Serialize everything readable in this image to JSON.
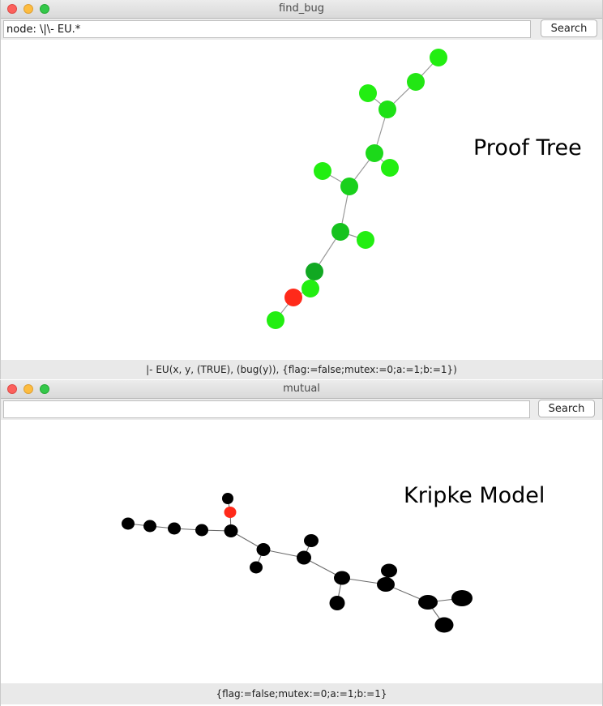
{
  "window_top": {
    "title": "find_bug",
    "search_value": "node: \\|\\- EU.*",
    "search_button": "Search",
    "status": "|- EU(x, y, (TRUE), (bug(y)), {flag:=false;mutex:=0;a:=1;b:=1})",
    "overlay_label": "Proof Tree",
    "colors": {
      "light_node": "#22ee11",
      "mid_node": "#11cc22",
      "dark_node": "#11a822",
      "bug_node": "#ff2a1a",
      "edge": "#9a9a9a"
    }
  },
  "window_bottom": {
    "title": "mutual",
    "search_value": "",
    "search_button": "Search",
    "status": "{flag:=false;mutex:=0;a:=1;b:=1}",
    "overlay_label": "Kripke Model",
    "colors": {
      "node": "#000000",
      "bug_node": "#ff2a1a",
      "edge": "#6a6a6a"
    }
  }
}
